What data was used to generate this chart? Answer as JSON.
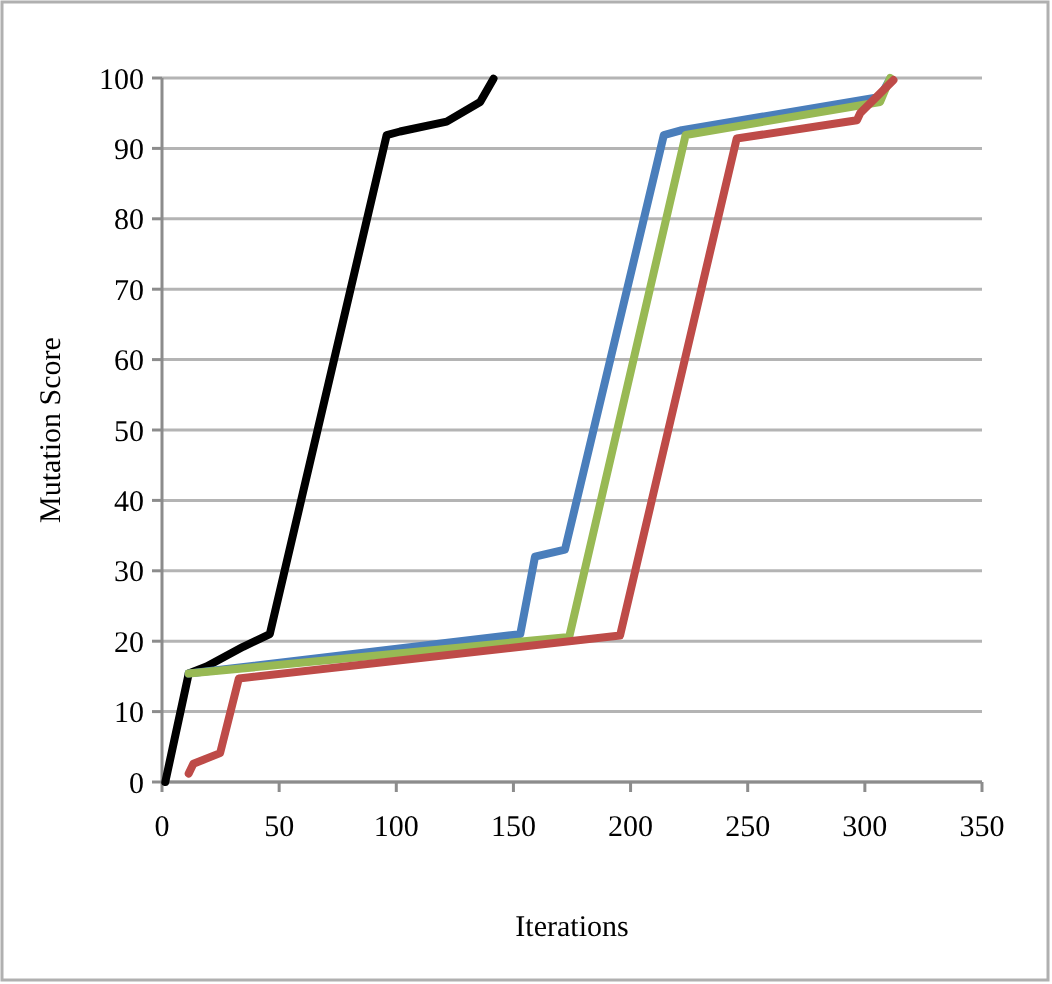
{
  "chart_data": {
    "type": "line",
    "xlabel": "Iterations",
    "ylabel": "Mutation Score",
    "xlim": [
      0,
      350
    ],
    "ylim": [
      0,
      100
    ],
    "xticks": [
      0,
      50,
      100,
      150,
      200,
      250,
      300,
      350
    ],
    "yticks": [
      0,
      10,
      20,
      30,
      40,
      50,
      60,
      70,
      80,
      90,
      100
    ],
    "grid": "y",
    "marker": "none",
    "line_style": "solid",
    "series": [
      {
        "color": "#000000",
        "x": [
          1.4,
          11.4,
          19,
          34.6,
          46,
          95.9,
          101.6,
          121.5,
          135.8,
          141.5
        ],
        "values": [
          0,
          15.4,
          16.4,
          19.2,
          21,
          91.9,
          92.4,
          93.8,
          96.6,
          99.9
        ]
      },
      {
        "color": "#4a7ebb",
        "x": [
          11.4,
          152.9,
          159.2,
          172,
          214.2,
          221.9,
          306.5,
          310.8
        ],
        "values": [
          15.4,
          21,
          32,
          33,
          91.9,
          92.6,
          97.3,
          99.9
        ]
      },
      {
        "color": "#98b954",
        "x": [
          11.4,
          173.8,
          223.5,
          306.5,
          310.8
        ],
        "values": [
          15.4,
          20.6,
          91.9,
          96.6,
          100
        ]
      },
      {
        "color": "#be4b48",
        "x": [
          11.4,
          13.4,
          24.8,
          32.8,
          195.5,
          245.3,
          296.6,
          298,
          312.2
        ],
        "values": [
          1.2,
          2.6,
          4.1,
          14.7,
          20.8,
          91.4,
          94,
          95,
          99.7
        ]
      }
    ]
  }
}
